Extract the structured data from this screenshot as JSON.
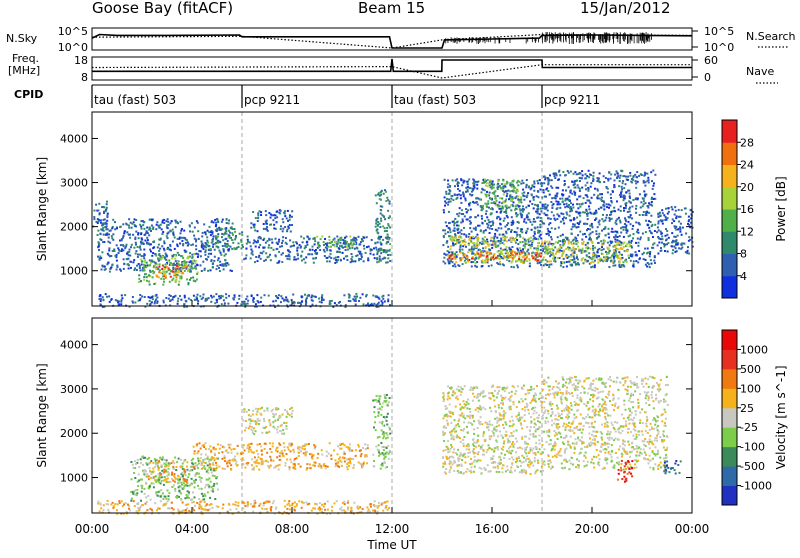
{
  "header": {
    "station": "Goose Bay (fitACF)",
    "beam": "Beam 15",
    "date": "15/Jan/2012"
  },
  "left_labels": {
    "nsky": "N.Sky",
    "freq_line1": "Freq.",
    "freq_line2": "[MHz]",
    "cpid": "CPID"
  },
  "right_labels": {
    "nsearch": "N.Search",
    "nave": "Nave"
  },
  "chart_data": [
    {
      "type": "line",
      "panel": "noise",
      "x_unit": "hours UT",
      "xlim": [
        0,
        24
      ],
      "y_ticks_left": [
        "10^5",
        "10^0"
      ],
      "y_ticks_right": [
        "10^5",
        "10^0"
      ],
      "series": [
        {
          "name": "N.Sky",
          "style": "solid",
          "x": [
            0,
            0.3,
            1,
            3,
            5.9,
            6.0,
            8,
            10,
            11.9,
            12.0,
            14.0,
            14.1,
            16,
            17.9,
            18.0,
            20,
            22,
            24
          ],
          "y": [
            0.55,
            0.75,
            0.7,
            0.7,
            0.72,
            0.62,
            0.62,
            0.62,
            0.62,
            0.0,
            0.0,
            0.45,
            0.5,
            0.55,
            0.7,
            0.72,
            0.7,
            0.68
          ]
        },
        {
          "name": "N.Search",
          "style": "dotted",
          "x": [
            0,
            6,
            12,
            14,
            18,
            24
          ],
          "y": [
            0.6,
            0.65,
            0.0,
            0.45,
            0.75,
            0.7
          ]
        }
      ]
    },
    {
      "type": "line",
      "panel": "frequency",
      "x_unit": "hours UT",
      "xlim": [
        0,
        24
      ],
      "y_ticks_left": [
        "18",
        "8"
      ],
      "y_ticks_right": [
        "60",
        "0"
      ],
      "series": [
        {
          "name": "Freq",
          "style": "solid",
          "x": [
            0,
            11.95,
            12.0,
            12.05,
            13.99,
            14.0,
            18.0,
            18.01,
            24
          ],
          "y": [
            0.35,
            0.35,
            1.0,
            0.35,
            0.35,
            0.95,
            0.95,
            0.55,
            0.55
          ]
        },
        {
          "name": "Nave",
          "style": "dotted",
          "x": [
            0,
            12,
            14,
            18,
            24
          ],
          "y": [
            0.55,
            0.6,
            0.0,
            0.7,
            0.7
          ]
        }
      ]
    },
    {
      "type": "table",
      "panel": "cpid",
      "segments": [
        {
          "start": 0,
          "label": "tau (fast) 503"
        },
        {
          "start": 6,
          "label": "pcp 9211"
        },
        {
          "start": 12,
          "label": "tau (fast) 503"
        },
        {
          "start": 18,
          "label": "pcp 9211"
        }
      ]
    },
    {
      "type": "heatmap",
      "panel": "power",
      "ylabel": "Slant Range [km]",
      "ylim": [
        200,
        4600
      ],
      "y_ticks": [
        1000,
        2000,
        3000,
        4000
      ],
      "xlim": [
        0,
        24
      ],
      "colorbar_label": "Power [dB]",
      "colorbar_ticks": [
        "28",
        "24",
        "20",
        "16",
        "12",
        "8",
        "4"
      ],
      "colorbar_colors": [
        "#1030e0",
        "#2e5fb0",
        "#2f8a6b",
        "#4fb04a",
        "#a8d23a",
        "#f5b21c",
        "#f07010",
        "#e82020"
      ],
      "regions": [
        {
          "x0": 0,
          "x1": 0.6,
          "y0": 1800,
          "y1": 2600,
          "level": 1
        },
        {
          "x0": 0.2,
          "x1": 5.6,
          "y0": 1000,
          "y1": 2200,
          "level": 1
        },
        {
          "x0": 1.8,
          "x1": 4.2,
          "y0": 700,
          "y1": 1400,
          "level": 3
        },
        {
          "x0": 2.5,
          "x1": 3.8,
          "y0": 850,
          "y1": 1150,
          "level": 6
        },
        {
          "x0": 4.5,
          "x1": 6.0,
          "y0": 1500,
          "y1": 2000,
          "level": 2
        },
        {
          "x0": 6.0,
          "x1": 11.9,
          "y0": 1200,
          "y1": 1800,
          "level": 1
        },
        {
          "x0": 8.8,
          "x1": 10.5,
          "y0": 1550,
          "y1": 1800,
          "level": 3
        },
        {
          "x0": 6.3,
          "x1": 8.0,
          "y0": 1900,
          "y1": 2400,
          "level": 1
        },
        {
          "x0": 11.3,
          "x1": 11.9,
          "y0": 1200,
          "y1": 2900,
          "level": 2
        },
        {
          "x0": 0.2,
          "x1": 11.9,
          "y0": 200,
          "y1": 500,
          "level": 1
        },
        {
          "x0": 14.0,
          "x1": 18.0,
          "y0": 1100,
          "y1": 3100,
          "level": 1
        },
        {
          "x0": 14.2,
          "x1": 18.0,
          "y0": 1200,
          "y1": 1800,
          "level": 4
        },
        {
          "x0": 14.2,
          "x1": 18.0,
          "y0": 1250,
          "y1": 1450,
          "level": 6
        },
        {
          "x0": 15.5,
          "x1": 17.2,
          "y0": 2400,
          "y1": 3100,
          "level": 3
        },
        {
          "x0": 18.0,
          "x1": 22.5,
          "y0": 1100,
          "y1": 3300,
          "level": 1
        },
        {
          "x0": 18.0,
          "x1": 21.5,
          "y0": 1200,
          "y1": 1700,
          "level": 4
        },
        {
          "x0": 22.5,
          "x1": 24.0,
          "y0": 1400,
          "y1": 2500,
          "level": 1
        }
      ]
    },
    {
      "type": "heatmap",
      "panel": "velocity",
      "ylabel": "Slant Range [km]",
      "xlabel": "Time UT",
      "ylim": [
        200,
        4600
      ],
      "y_ticks": [
        1000,
        2000,
        3000,
        4000
      ],
      "xlim": [
        0,
        24
      ],
      "x_ticks": [
        "00:00",
        "04:00",
        "08:00",
        "12:00",
        "16:00",
        "20:00",
        "00:00"
      ],
      "colorbar_label": "Velocity [m s^-1]",
      "colorbar_ticks": [
        "1000",
        "500",
        "100",
        "25",
        "-25",
        "-100",
        "-500",
        "-1000"
      ],
      "colorbar_colors": [
        "#2030c0",
        "#2e6aa8",
        "#3a8a5a",
        "#7ccd4a",
        "#c8c8c0",
        "#f5b21c",
        "#f07a10",
        "#e83020",
        "#e80808"
      ],
      "regions": [
        {
          "x0": 1.5,
          "x1": 5.0,
          "y0": 500,
          "y1": 1500,
          "level": 3
        },
        {
          "x0": 2.2,
          "x1": 3.8,
          "y0": 900,
          "y1": 1400,
          "level": 5
        },
        {
          "x0": 4.0,
          "x1": 11.0,
          "y0": 1200,
          "y1": 1800,
          "level": 5
        },
        {
          "x0": 6.0,
          "x1": 8.0,
          "y0": 2000,
          "y1": 2600,
          "level": 4
        },
        {
          "x0": 11.2,
          "x1": 11.9,
          "y0": 1200,
          "y1": 2900,
          "level": 3
        },
        {
          "x0": 0.2,
          "x1": 11.9,
          "y0": 200,
          "y1": 500,
          "level": 5
        },
        {
          "x0": 14.0,
          "x1": 18.0,
          "y0": 1100,
          "y1": 3100,
          "level": 4
        },
        {
          "x0": 18.0,
          "x1": 23.0,
          "y0": 1200,
          "y1": 3300,
          "level": 4
        },
        {
          "x0": 21.0,
          "x1": 21.6,
          "y0": 900,
          "y1": 1400,
          "level": 7
        },
        {
          "x0": 22.8,
          "x1": 23.6,
          "y0": 1100,
          "y1": 1400,
          "level": 1
        }
      ]
    }
  ]
}
